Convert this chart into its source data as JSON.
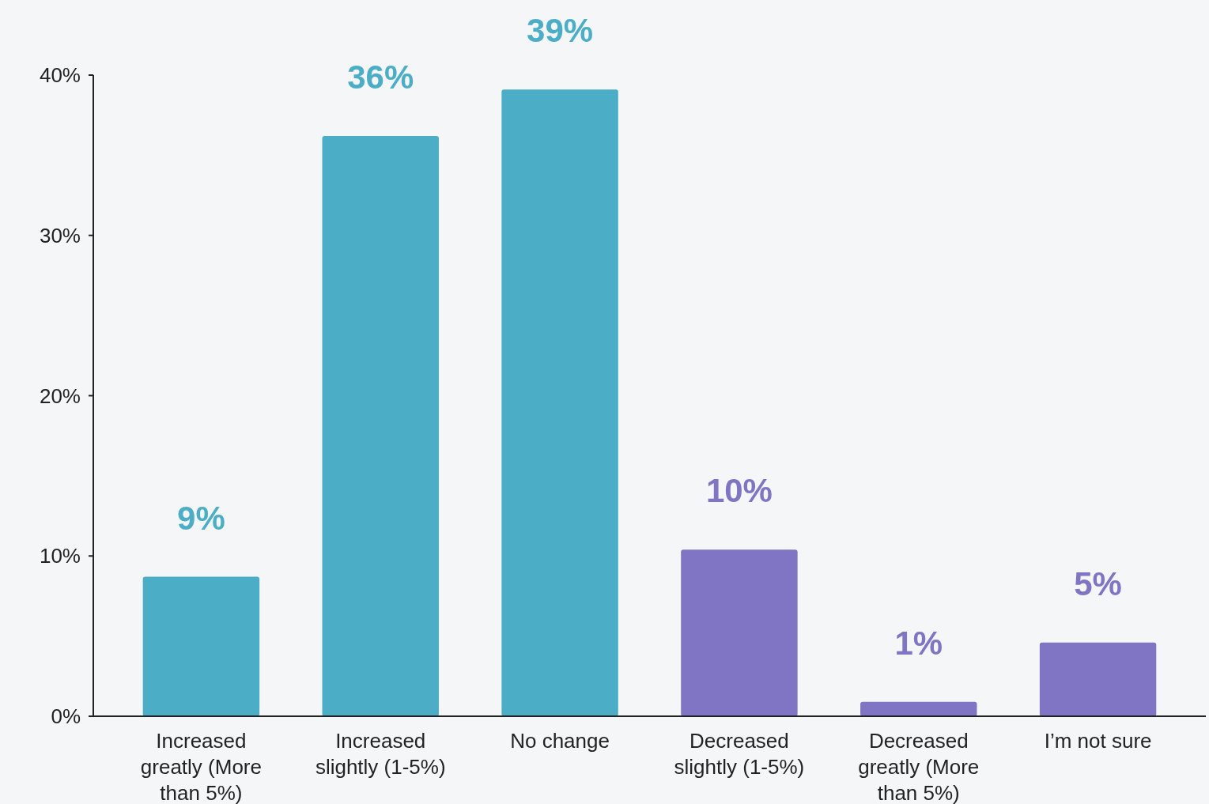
{
  "chart_data": {
    "type": "bar",
    "categories": [
      "Increased greatly (More than 5%)",
      "Increased slightly (1-5%)",
      "No change",
      "Decreased slightly (1-5%)",
      "Decreased greatly (More than 5%)",
      "I’m not sure"
    ],
    "values": [
      8.7,
      36.2,
      39.1,
      10.4,
      0.9,
      4.6
    ],
    "colors": [
      "#4badc6",
      "#4badc6",
      "#4badc6",
      "#8075c4",
      "#8075c4",
      "#8075c4"
    ],
    "value_labels": [
      "9%",
      "36%",
      "39%",
      "10%",
      "1%",
      "5%"
    ],
    "ylim": [
      0,
      40
    ],
    "yticks": [
      {
        "value": 0,
        "label": "0%"
      },
      {
        "value": 10,
        "label": "10%"
      },
      {
        "value": 20,
        "label": "20%"
      },
      {
        "value": 30,
        "label": "30%"
      },
      {
        "value": 40,
        "label": "40%"
      }
    ],
    "grid": false
  }
}
